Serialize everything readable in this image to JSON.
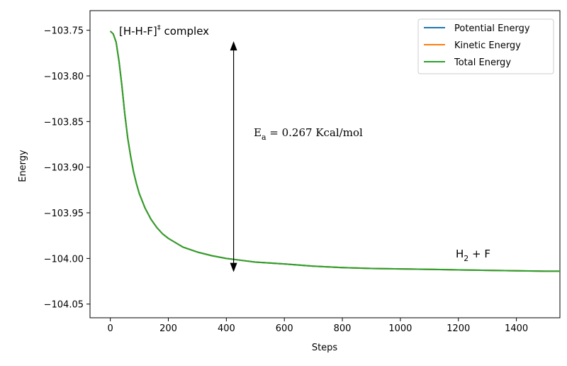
{
  "chart_data": {
    "type": "line",
    "xlabel": "Steps",
    "ylabel": "Energy",
    "xlim": [
      -70,
      1550
    ],
    "ylim": [
      -104.065,
      -103.7285
    ],
    "xticks": [
      0,
      200,
      400,
      600,
      800,
      1000,
      1200,
      1400
    ],
    "xtick_labels": [
      "0",
      "200",
      "400",
      "600",
      "800",
      "1000",
      "1200",
      "1400"
    ],
    "yticks": [
      -103.75,
      -103.8,
      -103.85,
      -103.9,
      -103.95,
      -104.0,
      -104.05
    ],
    "ytick_labels": [
      "−103.75",
      "−103.80",
      "−103.85",
      "−103.90",
      "−103.95",
      "−104.00",
      "−104.05"
    ],
    "grid": false,
    "legend_position": "top-right",
    "series": [
      {
        "name": "Potential Energy",
        "color": "#1f77b4",
        "x": [
          0,
          10,
          20,
          30,
          40,
          50,
          60,
          70,
          80,
          90,
          100,
          120,
          140,
          160,
          180,
          200,
          250,
          300,
          350,
          400,
          450,
          500,
          600,
          700,
          800,
          900,
          1000,
          1100,
          1200,
          1300,
          1400,
          1500,
          1550
        ],
        "y": [
          -103.751,
          -103.754,
          -103.763,
          -103.784,
          -103.811,
          -103.842,
          -103.868,
          -103.888,
          -103.905,
          -103.918,
          -103.929,
          -103.945,
          -103.957,
          -103.966,
          -103.973,
          -103.978,
          -103.9875,
          -103.993,
          -103.997,
          -104.0,
          -104.002,
          -104.004,
          -104.006,
          -104.0085,
          -104.01,
          -104.011,
          -104.0115,
          -104.012,
          -104.0125,
          -104.013,
          -104.0135,
          -104.014,
          -104.014
        ]
      },
      {
        "name": "Kinetic Energy",
        "color": "#ff7f0e",
        "x": [
          0,
          10,
          20,
          30,
          40,
          50,
          60,
          70,
          80,
          90,
          100,
          120,
          140,
          160,
          180,
          200,
          250,
          300,
          350,
          400,
          450,
          500,
          600,
          700,
          800,
          900,
          1000,
          1100,
          1200,
          1300,
          1400,
          1500,
          1550
        ],
        "y": [
          -103.751,
          -103.754,
          -103.763,
          -103.784,
          -103.811,
          -103.842,
          -103.868,
          -103.888,
          -103.905,
          -103.918,
          -103.929,
          -103.945,
          -103.957,
          -103.966,
          -103.973,
          -103.978,
          -103.9875,
          -103.993,
          -103.997,
          -104.0,
          -104.002,
          -104.004,
          -104.006,
          -104.0085,
          -104.01,
          -104.011,
          -104.0115,
          -104.012,
          -104.0125,
          -104.013,
          -104.0135,
          -104.014,
          -104.014
        ]
      },
      {
        "name": "Total Energy",
        "color": "#2ca02c",
        "x": [
          0,
          10,
          20,
          30,
          40,
          50,
          60,
          70,
          80,
          90,
          100,
          120,
          140,
          160,
          180,
          200,
          250,
          300,
          350,
          400,
          450,
          500,
          600,
          700,
          800,
          900,
          1000,
          1100,
          1200,
          1300,
          1400,
          1500,
          1550
        ],
        "y": [
          -103.751,
          -103.754,
          -103.763,
          -103.784,
          -103.811,
          -103.842,
          -103.868,
          -103.888,
          -103.905,
          -103.918,
          -103.929,
          -103.945,
          -103.957,
          -103.966,
          -103.973,
          -103.978,
          -103.9875,
          -103.993,
          -103.997,
          -104.0,
          -104.002,
          -104.004,
          -104.006,
          -104.0085,
          -104.01,
          -104.011,
          -104.0115,
          -104.012,
          -104.0125,
          -104.013,
          -104.0135,
          -104.014,
          -104.014
        ]
      }
    ],
    "annotations": {
      "complex_label": "[H-H-F]",
      "complex_sup": "‡",
      "complex_suffix": " complex",
      "ea_main": "E",
      "ea_sub": "a",
      "ea_value": " =  0.267 Kcal/mol",
      "product_main": "H",
      "product_sub": "2",
      "product_suffix": " + F",
      "arrow_x": 425,
      "arrow_y_top": -103.762,
      "arrow_y_bottom": -104.015
    }
  }
}
